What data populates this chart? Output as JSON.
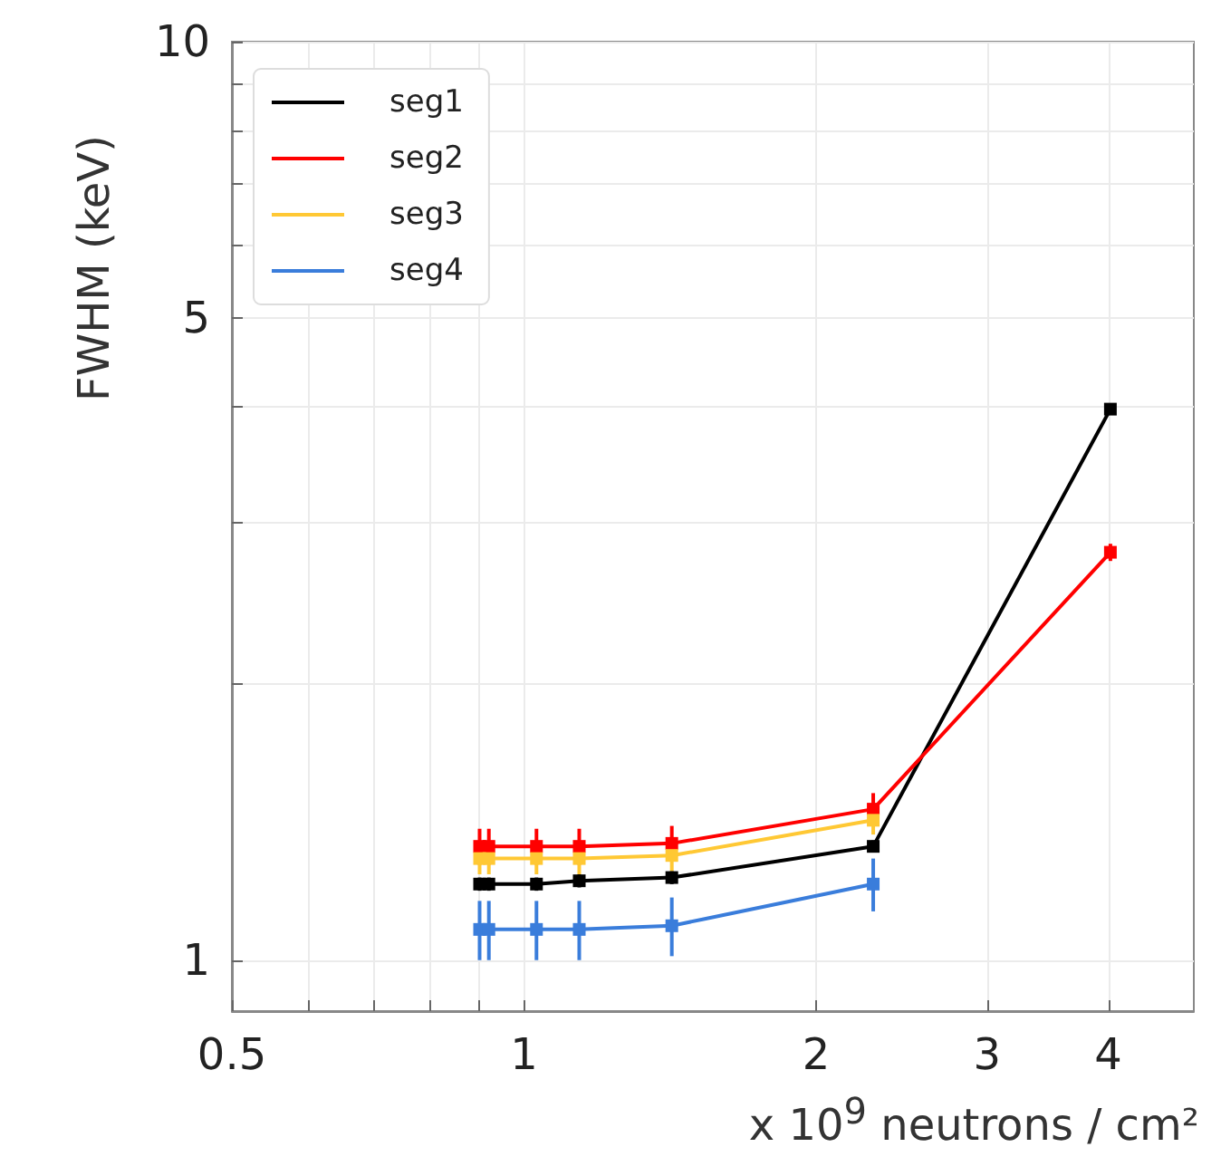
{
  "chart_data": {
    "type": "line",
    "xlabel": "x 10$^{9}$ neutrons / cm²",
    "ylabel": "FWHM (keV)",
    "log": "xy",
    "grid": true,
    "legend": "top left",
    "marker": "square",
    "line_style": "solid",
    "xlim": [
      0.5,
      4.9
    ],
    "ylim": [
      0.88,
      10
    ],
    "xticks": [
      0.5,
      {
        "value": 0.6,
        "label": null
      },
      {
        "value": 0.7,
        "label": null
      },
      {
        "value": 0.8,
        "label": null
      },
      {
        "value": 0.9,
        "label": null
      },
      1,
      2,
      3,
      4
    ],
    "yticks": [
      1,
      {
        "value": 2,
        "label": null
      },
      {
        "value": 3,
        "label": null
      },
      {
        "value": 4,
        "label": null
      },
      5,
      {
        "value": 6,
        "label": null
      },
      {
        "value": 7,
        "label": null
      },
      {
        "value": 8,
        "label": null
      },
      {
        "value": 9,
        "label": null
      },
      10
    ],
    "x": [
      0.9,
      0.92,
      1.03,
      1.14,
      1.42,
      2.29,
      4.02
    ],
    "series": [
      {
        "name": "seg1",
        "color": "#000000",
        "values": [
          1.21,
          1.21,
          1.21,
          1.22,
          1.23,
          1.33,
          3.98
        ],
        "errors": [
          0.02,
          0.02,
          0.02,
          0.02,
          0.02,
          0.02,
          0.05
        ]
      },
      {
        "name": "seg2",
        "color": "#ff0000",
        "values": [
          1.33,
          1.33,
          1.33,
          1.33,
          1.34,
          1.46,
          2.78
        ],
        "errors": [
          0.06,
          0.06,
          0.06,
          0.06,
          0.06,
          0.06,
          0.06
        ]
      },
      {
        "name": "seg3",
        "color": "#ffc834",
        "values": [
          1.29,
          1.29,
          1.29,
          1.29,
          1.3,
          1.42,
          null
        ],
        "errors": [
          0.05,
          0.05,
          0.05,
          0.05,
          0.05,
          0.05,
          null
        ]
      },
      {
        "name": "seg4",
        "color": "#3a7ddb",
        "values": [
          1.08,
          1.08,
          1.08,
          1.08,
          1.09,
          1.21,
          null
        ],
        "errors": [
          0.08,
          0.08,
          0.08,
          0.08,
          0.08,
          0.08,
          null
        ]
      }
    ]
  }
}
